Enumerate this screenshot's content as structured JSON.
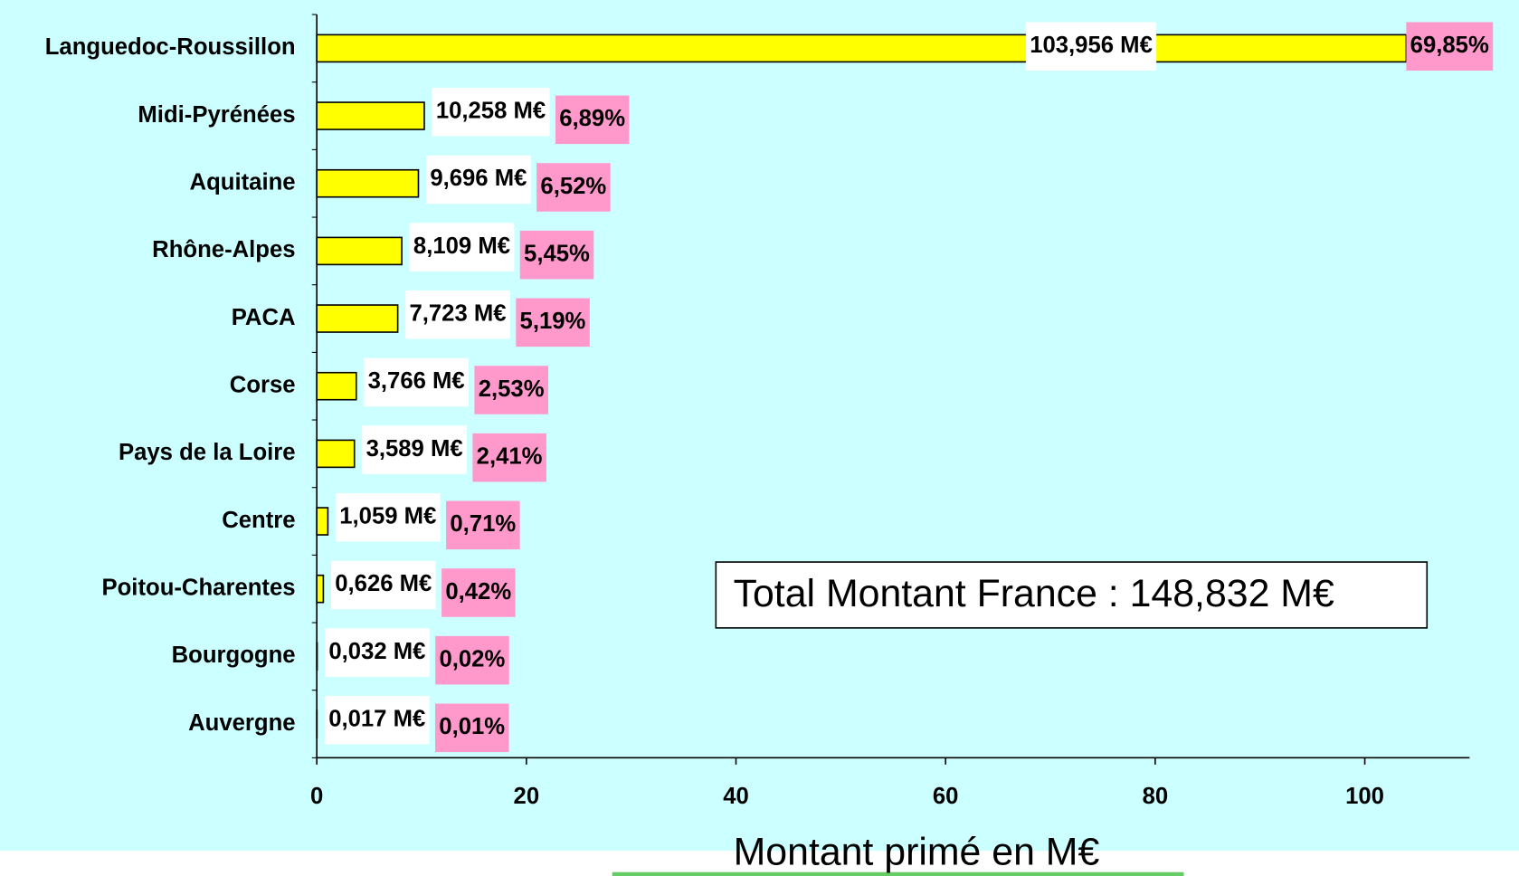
{
  "chart_data": {
    "type": "bar",
    "orientation": "horizontal",
    "categories": [
      "Languedoc-Roussillon",
      "Midi-Pyrénées",
      "Aquitaine",
      "Rhône-Alpes",
      "PACA",
      "Corse",
      "Pays de la Loire",
      "Centre",
      "Poitou-Charentes",
      "Bourgogne",
      "Auvergne"
    ],
    "values": [
      103.956,
      10.258,
      9.696,
      8.109,
      7.723,
      3.766,
      3.589,
      1.059,
      0.626,
      0.032,
      0.017
    ],
    "value_labels": [
      "103,956 M€",
      "10,258 M€",
      "9,696 M€",
      "8,109 M€",
      "7,723 M€",
      "3,766 M€",
      "3,589 M€",
      "1,059 M€",
      "0,626 M€",
      "0,032 M€",
      "0,017 M€"
    ],
    "shares": [
      69.85,
      6.89,
      6.52,
      5.45,
      5.19,
      2.53,
      2.41,
      0.71,
      0.42,
      0.02,
      0.01
    ],
    "share_labels": [
      "69,85%",
      "6,89%",
      "6,52%",
      "5,45%",
      "5,19%",
      "2,53%",
      "2,41%",
      "0,71%",
      "0,42%",
      "0,02%",
      "0,01%"
    ],
    "color": "#ffff00",
    "share_color": "#ff99cc",
    "background": "#ccffff",
    "xlim": [
      0,
      110
    ],
    "xticks": [
      0,
      20,
      40,
      60,
      80,
      100
    ],
    "x_label": "Montant primé en M€",
    "annotation": "Total Montant France : 148,832 M€"
  }
}
